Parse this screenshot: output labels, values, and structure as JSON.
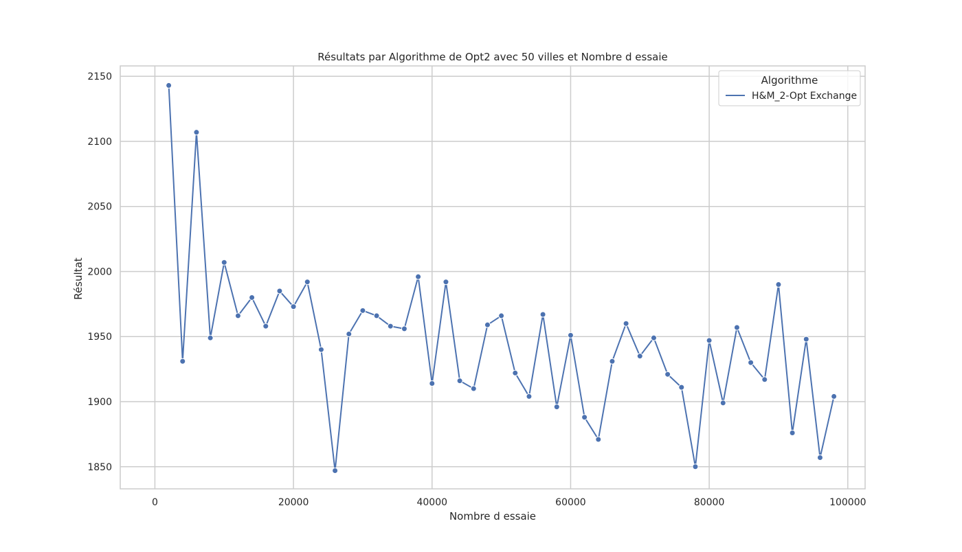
{
  "chart_data": {
    "type": "line",
    "title": "Résultats par Algorithme de Opt2 avec 50 villes et Nombre d essaie",
    "xlabel": "Nombre d essaie",
    "ylabel": "Résultat",
    "xlim": [
      -5000,
      102500
    ],
    "ylim": [
      1833,
      2158
    ],
    "xticks": [
      0,
      20000,
      40000,
      60000,
      80000,
      100000
    ],
    "xtick_labels": [
      "0",
      "20000",
      "40000",
      "60000",
      "80000",
      "100000"
    ],
    "yticks": [
      1850,
      1900,
      1950,
      2000,
      2050,
      2100,
      2150
    ],
    "ytick_labels": [
      "1850",
      "1900",
      "1950",
      "2000",
      "2050",
      "2100",
      "2150"
    ],
    "grid": true,
    "legend": {
      "title": "Algorithme",
      "placement": "top-right"
    },
    "series": [
      {
        "name": "H&M_2-Opt Exchange",
        "color": "#4c72b0",
        "x": [
          2000,
          4000,
          6000,
          8000,
          10000,
          12000,
          14000,
          16000,
          18000,
          20000,
          22000,
          24000,
          26000,
          28000,
          30000,
          32000,
          34000,
          36000,
          38000,
          40000,
          42000,
          44000,
          46000,
          48000,
          50000,
          52000,
          54000,
          56000,
          58000,
          60000,
          62000,
          64000,
          66000,
          68000,
          70000,
          72000,
          74000,
          76000,
          78000,
          80000,
          82000,
          84000,
          86000,
          88000,
          90000,
          92000,
          94000,
          96000,
          98000
        ],
        "y": [
          2143,
          1931,
          2107,
          1949,
          2007,
          1966,
          1980,
          1958,
          1985,
          1973,
          1992,
          1940,
          1847,
          1952,
          1970,
          1966,
          1958,
          1956,
          1996,
          1914,
          1992,
          1916,
          1910,
          1959,
          1966,
          1922,
          1904,
          1967,
          1896,
          1951,
          1888,
          1871,
          1931,
          1960,
          1935,
          1949,
          1921,
          1911,
          1850,
          1947,
          1899,
          1957,
          1930,
          1917,
          1990,
          1876,
          1948,
          1857,
          1904
        ]
      }
    ]
  }
}
